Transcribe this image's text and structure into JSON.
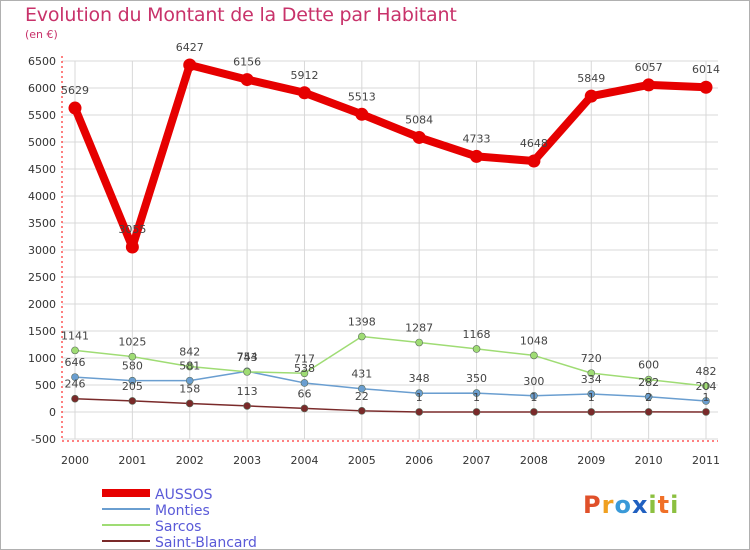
{
  "title": "Evolution du Montant de la Dette par Habitant",
  "subtitle": "(en €)",
  "logo_text": "Proxiti",
  "chart_data": {
    "type": "line",
    "x": [
      "2000",
      "2001",
      "2002",
      "2003",
      "2004",
      "2005",
      "2006",
      "2007",
      "2008",
      "2009",
      "2010",
      "2011"
    ],
    "ylim": [
      -500,
      6500
    ],
    "yticks": [
      -500,
      0,
      500,
      1000,
      1500,
      2000,
      2500,
      3000,
      3500,
      4000,
      4500,
      5000,
      5500,
      6000,
      6500
    ],
    "grid": true,
    "legend_position": "bottom-left",
    "series": [
      {
        "name": "AUSSOS",
        "color": "#e60000",
        "values": [
          5629,
          3055,
          6427,
          6156,
          5912,
          5513,
          5084,
          4733,
          4648,
          5849,
          6057,
          6014
        ],
        "labels": [
          "5629",
          "3055",
          "6427",
          "6156",
          "5912",
          "5513",
          "5084",
          "4733",
          "4648",
          "5849",
          "6057",
          "6014"
        ]
      },
      {
        "name": "Monties",
        "color": "#6a9ed0",
        "values": [
          646,
          580,
          581,
          754,
          538,
          431,
          348,
          350,
          300,
          334,
          282,
          204
        ],
        "labels": [
          "646",
          "580",
          "581",
          "754",
          "538",
          "431",
          "348",
          "350",
          "300",
          "334",
          "282",
          "204"
        ]
      },
      {
        "name": "Sarcos",
        "color": "#9fdc74",
        "values": [
          1141,
          1025,
          842,
          743,
          717,
          1398,
          1287,
          1168,
          1048,
          720,
          600,
          482
        ],
        "labels": [
          "1141",
          "1025",
          "842",
          "743",
          "717",
          "1398",
          "1287",
          "1168",
          "1048",
          "720",
          "600",
          "482"
        ]
      },
      {
        "name": "Saint-Blancard",
        "color": "#7a2a2a",
        "values": [
          246,
          205,
          158,
          113,
          66,
          22,
          1,
          1,
          1,
          1,
          2,
          1
        ],
        "labels": [
          "246",
          "205",
          "158",
          "113",
          "66",
          "22",
          "1",
          "1",
          "1",
          "1",
          "2",
          "1"
        ]
      }
    ]
  }
}
